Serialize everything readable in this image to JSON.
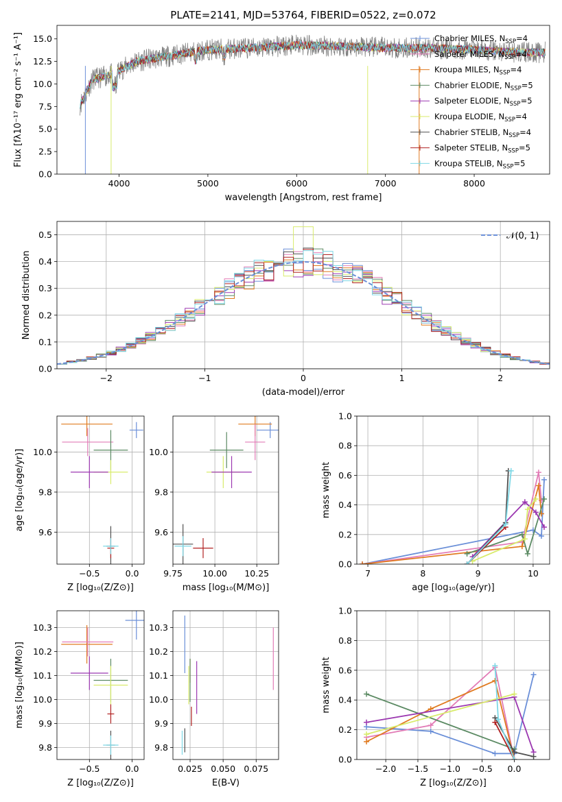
{
  "colors": {
    "chabrier_miles": "#6a8fd8",
    "salpeter_miles": "#e27bb6",
    "kroupa_miles": "#e07a1f",
    "chabrier_elodie": "#5b8a63",
    "salpeter_elodie": "#9b37b0",
    "kroupa_elodie": "#d8eb6a",
    "chabrier_stelib": "#4f4f4f",
    "salpeter_stelib": "#b02020",
    "kroupa_stelib": "#7dd8e6",
    "data": "#808080",
    "gauss": "#6a8fd8"
  },
  "legend_spectrum": [
    {
      "key": "chabrier_miles",
      "text": "Chabrier MILES, N",
      "sub": "SSP",
      "eq": "=4"
    },
    {
      "key": "salpeter_miles",
      "text": "Salpeter MILES, N",
      "sub": "SSP",
      "eq": "=4"
    },
    {
      "key": "kroupa_miles",
      "text": "Kroupa MILES, N",
      "sub": "SSP",
      "eq": "=4"
    },
    {
      "key": "chabrier_elodie",
      "text": "Chabrier ELODIE, N",
      "sub": "SSP",
      "eq": "=5"
    },
    {
      "key": "salpeter_elodie",
      "text": "Salpeter ELODIE, N",
      "sub": "SSP",
      "eq": "=5"
    },
    {
      "key": "kroupa_elodie",
      "text": "Kroupa ELODIE, N",
      "sub": "SSP",
      "eq": "=4"
    },
    {
      "key": "chabrier_stelib",
      "text": "Chabrier STELIB, N",
      "sub": "SSP",
      "eq": "=4"
    },
    {
      "key": "salpeter_stelib",
      "text": "Salpeter STELIB, N",
      "sub": "SSP",
      "eq": "=5"
    },
    {
      "key": "kroupa_stelib",
      "text": "Kroupa STELIB, N",
      "sub": "SSP",
      "eq": "=5"
    }
  ],
  "chart_data": [
    {
      "type": "line",
      "title": "PLATE=2141, MJD=53764, FIBERID=0522, z=0.072",
      "xlabel": "wavelength [Angstrom, rest frame]",
      "ylabel": "Flux [fλ10⁻¹⁷ erg cm⁻² s⁻¹ A⁻¹]",
      "xlim": [
        3300,
        8850
      ],
      "ylim": [
        0,
        16.5
      ],
      "xticks": [
        "4000",
        "5000",
        "6000",
        "7000",
        "8000"
      ],
      "yticks": [
        "0.0",
        "2.5",
        "5.0",
        "7.5",
        "10.0",
        "12.5",
        "15.0"
      ],
      "continuum": {
        "x": [
          3550,
          3700,
          3900,
          4000,
          4200,
          4500,
          5000,
          5500,
          6000,
          6500,
          7000,
          7500,
          8000,
          8500
        ],
        "y": [
          7.5,
          10.5,
          11.0,
          11.5,
          12.5,
          13.0,
          13.8,
          14.0,
          14.3,
          14.2,
          14.0,
          14.0,
          13.8,
          13.5
        ]
      }
    },
    {
      "type": "line",
      "xlabel": "(data-model)/error",
      "ylabel": "Normed distribution",
      "xlim": [
        -2.5,
        2.5
      ],
      "ylim": [
        0,
        0.55
      ],
      "xticks": [
        "−2",
        "−1",
        "0",
        "1",
        "2"
      ],
      "yticks": [
        "0.0",
        "0.1",
        "0.2",
        "0.3",
        "0.4",
        "0.5"
      ],
      "legend": "𝒩(0, 1)",
      "bin_width": 0.1
    },
    {
      "type": "scatter",
      "xlabel": "Z [log₁₀(Z/Z⊙)]",
      "ylabel": "age  [log₁₀(age/yr)]",
      "xlim": [
        -0.88,
        0.14
      ],
      "ylim": [
        9.44,
        10.18
      ],
      "xticks": [
        "−0.5",
        "0.0"
      ],
      "yticks": [
        "9.6",
        "9.8",
        "10.0"
      ],
      "points": [
        {
          "key": "chabrier_miles",
          "x": 0.05,
          "y": 10.11,
          "xe": 0.08,
          "ye": 0.04
        },
        {
          "key": "kroupa_miles",
          "x": -0.53,
          "y": 10.14,
          "xe": 0.3,
          "ye": 0.06
        },
        {
          "key": "salpeter_miles",
          "x": -0.52,
          "y": 10.05,
          "xe": 0.3,
          "ye": 0.07
        },
        {
          "key": "chabrier_elodie",
          "x": -0.25,
          "y": 10.01,
          "xe": 0.2,
          "ye": 0.1
        },
        {
          "key": "kroupa_elodie",
          "x": -0.25,
          "y": 9.9,
          "xe": 0.2,
          "ye": 0.06
        },
        {
          "key": "salpeter_elodie",
          "x": -0.5,
          "y": 9.9,
          "xe": 0.22,
          "ye": 0.08
        },
        {
          "key": "chabrier_stelib",
          "x": -0.25,
          "y": 9.53,
          "xe": 0.05,
          "ye": 0.1
        },
        {
          "key": "salpeter_stelib",
          "x": -0.25,
          "y": 9.52,
          "xe": 0.04,
          "ye": 0.05
        },
        {
          "key": "kroupa_stelib",
          "x": -0.25,
          "y": 9.53,
          "xe": 0.09,
          "ye": 0.04
        }
      ]
    },
    {
      "type": "scatter",
      "xlabel": "mass [log₁₀(M/M⊙)]",
      "ylabel": "",
      "xlim": [
        9.75,
        10.38
      ],
      "ylim": [
        9.44,
        10.18
      ],
      "xticks": [
        "9.75",
        "10.00",
        "10.25"
      ],
      "yticks": [
        "9.6",
        "9.8",
        "10.0"
      ],
      "points": [
        {
          "key": "chabrier_miles",
          "x": 10.33,
          "y": 10.11,
          "xe": 0.08,
          "ye": 0.04
        },
        {
          "key": "kroupa_miles",
          "x": 10.24,
          "y": 10.14,
          "xe": 0.1,
          "ye": 0.06
        },
        {
          "key": "salpeter_miles",
          "x": 10.24,
          "y": 10.05,
          "xe": 0.06,
          "ye": 0.09
        },
        {
          "key": "chabrier_elodie",
          "x": 10.07,
          "y": 10.01,
          "xe": 0.1,
          "ye": 0.09
        },
        {
          "key": "kroupa_elodie",
          "x": 10.05,
          "y": 9.9,
          "xe": 0.1,
          "ye": 0.08
        },
        {
          "key": "salpeter_elodie",
          "x": 10.1,
          "y": 9.9,
          "xe": 0.12,
          "ye": 0.08
        },
        {
          "key": "chabrier_stelib",
          "x": 9.81,
          "y": 9.54,
          "xe": 0.06,
          "ye": 0.1
        },
        {
          "key": "salpeter_stelib",
          "x": 9.93,
          "y": 9.52,
          "xe": 0.06,
          "ye": 0.05
        },
        {
          "key": "kroupa_stelib",
          "x": 9.81,
          "y": 9.53,
          "xe": 0.05,
          "ye": 0.05
        }
      ]
    },
    {
      "type": "line",
      "xlabel": "age  [log₁₀(age/yr)]",
      "ylabel": "mass weight",
      "xlim": [
        6.8,
        10.3
      ],
      "ylim": [
        0,
        1.0
      ],
      "xticks": [
        "7",
        "8",
        "9",
        "10"
      ],
      "yticks": [
        "0.0",
        "0.2",
        "0.4",
        "0.6",
        "0.8",
        "1.0"
      ],
      "series": [
        {
          "key": "chabrier_miles",
          "x": [
            6.9,
            10.0,
            10.15,
            10.2
          ],
          "y": [
            0.0,
            0.23,
            0.19,
            0.57
          ]
        },
        {
          "key": "salpeter_miles",
          "x": [
            6.9,
            9.8,
            10.1,
            10.15
          ],
          "y": [
            0.0,
            0.15,
            0.62,
            0.43
          ]
        },
        {
          "key": "kroupa_miles",
          "x": [
            6.9,
            9.8,
            10.1,
            10.15
          ],
          "y": [
            0.0,
            0.12,
            0.53,
            0.34
          ]
        },
        {
          "key": "chabrier_elodie",
          "x": [
            8.8,
            9.8,
            9.9,
            10.2
          ],
          "y": [
            0.07,
            0.2,
            0.07,
            0.44
          ]
        },
        {
          "key": "salpeter_elodie",
          "x": [
            8.9,
            9.85,
            10.05,
            10.2
          ],
          "y": [
            0.05,
            0.42,
            0.35,
            0.25
          ]
        },
        {
          "key": "kroupa_elodie",
          "x": [
            8.9,
            9.85,
            9.9,
            10.05
          ],
          "y": [
            0.02,
            0.17,
            0.37,
            0.44
          ]
        },
        {
          "key": "chabrier_stelib",
          "x": [
            8.8,
            9.5,
            9.55
          ],
          "y": [
            0.0,
            0.28,
            0.63
          ]
        },
        {
          "key": "salpeter_stelib",
          "x": [
            8.8,
            9.5
          ],
          "y": [
            0.0,
            0.25
          ]
        },
        {
          "key": "kroupa_stelib",
          "x": [
            8.8,
            9.5,
            9.6
          ],
          "y": [
            0.0,
            0.27,
            0.63
          ]
        }
      ]
    },
    {
      "type": "scatter",
      "xlabel": "Z [log₁₀(Z/Z⊙)]",
      "ylabel": "mass [log₁₀(M/M⊙)]",
      "xlim": [
        -0.88,
        0.14
      ],
      "ylim": [
        9.75,
        10.37
      ],
      "xticks": [
        "−0.5",
        "0.0"
      ],
      "yticks": [
        "9.8",
        "9.9",
        "10.0",
        "10.1",
        "10.2",
        "10.3"
      ],
      "points": [
        {
          "key": "chabrier_miles",
          "x": 0.05,
          "y": 10.33,
          "xe": 0.13,
          "ye": 0.08
        },
        {
          "key": "kroupa_miles",
          "x": -0.53,
          "y": 10.23,
          "xe": 0.3,
          "ye": 0.08
        },
        {
          "key": "salpeter_miles",
          "x": -0.52,
          "y": 10.24,
          "xe": 0.3,
          "ye": 0.06
        },
        {
          "key": "chabrier_elodie",
          "x": -0.25,
          "y": 10.08,
          "xe": 0.2,
          "ye": 0.09
        },
        {
          "key": "kroupa_elodie",
          "x": -0.25,
          "y": 10.06,
          "xe": 0.2,
          "ye": 0.08
        },
        {
          "key": "salpeter_elodie",
          "x": -0.5,
          "y": 10.11,
          "xe": 0.22,
          "ye": 0.07
        },
        {
          "key": "chabrier_stelib",
          "x": -0.25,
          "y": 9.81,
          "xe": 0.05,
          "ye": 0.06
        },
        {
          "key": "salpeter_stelib",
          "x": -0.25,
          "y": 9.94,
          "xe": 0.04,
          "ye": 0.04
        },
        {
          "key": "kroupa_stelib",
          "x": -0.25,
          "y": 9.81,
          "xe": 0.09,
          "ye": 0.04
        }
      ]
    },
    {
      "type": "scatter",
      "xlabel": "E(B-V)",
      "ylabel": "",
      "xlim": [
        0.012,
        0.092
      ],
      "ylim": [
        9.75,
        10.37
      ],
      "xticks": [
        "0.025",
        "0.050",
        "0.075"
      ],
      "yticks": [
        "9.8",
        "9.9",
        "10.0",
        "10.1",
        "10.2",
        "10.3"
      ],
      "points": [
        {
          "key": "chabrier_miles",
          "x": 0.021,
          "y": 10.23,
          "ye": 0.12
        },
        {
          "key": "salpeter_miles",
          "x": 0.088,
          "y": 10.17,
          "ye": 0.13
        },
        {
          "key": "kroupa_miles",
          "x": 0.025,
          "y": 10.12,
          "ye": 0.05
        },
        {
          "key": "chabrier_elodie",
          "x": 0.025,
          "y": 10.08,
          "ye": 0.09
        },
        {
          "key": "kroupa_elodie",
          "x": 0.024,
          "y": 10.06,
          "ye": 0.08
        },
        {
          "key": "salpeter_elodie",
          "x": 0.03,
          "y": 10.05,
          "ye": 0.11
        },
        {
          "key": "chabrier_stelib",
          "x": 0.021,
          "y": 9.83,
          "ye": 0.05
        },
        {
          "key": "salpeter_stelib",
          "x": 0.026,
          "y": 9.93,
          "ye": 0.04
        },
        {
          "key": "kroupa_stelib",
          "x": 0.019,
          "y": 9.82,
          "ye": 0.05
        }
      ]
    },
    {
      "type": "line",
      "xlabel": "Z [log₁₀(Z/Z⊙)]",
      "ylabel": "mass weight",
      "xlim": [
        -2.45,
        0.55
      ],
      "ylim": [
        0,
        1.0
      ],
      "xticks": [
        "−2.0",
        "−1.5",
        "−1.0",
        "−0.5",
        "0.0"
      ],
      "yticks": [
        "0.0",
        "0.2",
        "0.4",
        "0.6",
        "0.8",
        "1.0"
      ],
      "series": [
        {
          "key": "chabrier_miles",
          "x": [
            -2.3,
            -1.3,
            -0.3,
            0.0,
            0.3
          ],
          "y": [
            0.22,
            0.19,
            0.04,
            0.04,
            0.57
          ]
        },
        {
          "key": "salpeter_miles",
          "x": [
            -2.3,
            -1.3,
            -0.3,
            0.0
          ],
          "y": [
            0.15,
            0.23,
            0.62,
            0.0
          ]
        },
        {
          "key": "kroupa_miles",
          "x": [
            -2.3,
            -1.3,
            -0.3,
            0.0
          ],
          "y": [
            0.12,
            0.34,
            0.53,
            0.0
          ]
        },
        {
          "key": "chabrier_elodie",
          "x": [
            -2.3,
            0.0
          ],
          "y": [
            0.44,
            0.07
          ]
        },
        {
          "key": "salpeter_elodie",
          "x": [
            -2.3,
            0.0,
            0.3
          ],
          "y": [
            0.25,
            0.42,
            0.05
          ]
        },
        {
          "key": "kroupa_elodie",
          "x": [
            -2.3,
            0.0
          ],
          "y": [
            0.17,
            0.44
          ]
        },
        {
          "key": "chabrier_stelib",
          "x": [
            -0.3,
            0.0,
            0.3
          ],
          "y": [
            0.28,
            0.05,
            0.02
          ]
        },
        {
          "key": "salpeter_stelib",
          "x": [
            -0.3,
            0.0
          ],
          "y": [
            0.25,
            0.0
          ]
        },
        {
          "key": "kroupa_stelib",
          "x": [
            -0.3,
            -0.25,
            0.0
          ],
          "y": [
            0.63,
            0.27,
            0.0
          ]
        }
      ]
    }
  ]
}
